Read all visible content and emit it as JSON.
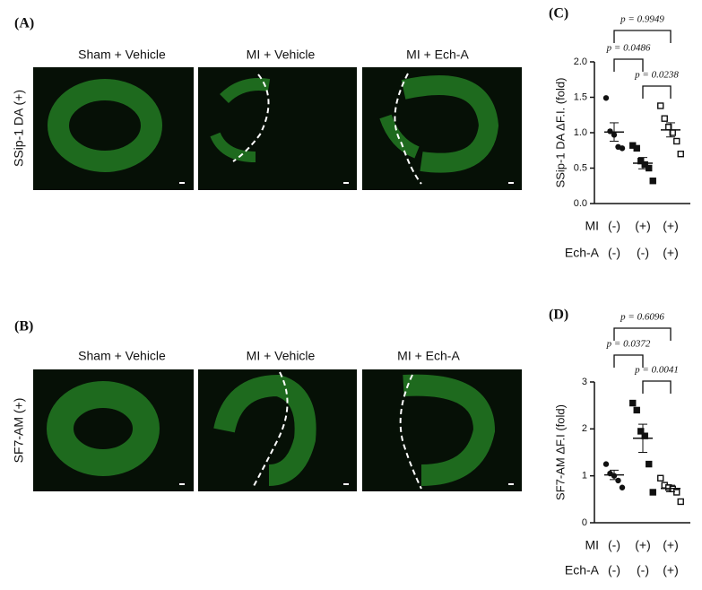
{
  "panel_a": {
    "label": "(A)",
    "row_label": "SSip-1 DA (+)",
    "columns": [
      "Sham + Vehicle",
      "MI + Vehicle",
      "MI + Ech-A"
    ]
  },
  "panel_b": {
    "label": "(B)",
    "row_label": "SF7-AM (+)",
    "columns": [
      "Sham + Vehicle",
      "MI + Vehicle",
      "MI + Ech-A"
    ]
  },
  "chart_data": [
    {
      "type": "dot",
      "label": "(C)",
      "y_label": "SSip-1 DA ΔF.I. (fold)",
      "ylim": [
        0,
        2
      ],
      "yticks": [
        {
          "value": 0,
          "label": "0.0"
        },
        0.5,
        {
          "value": 1,
          "label": "1.0"
        },
        1.5,
        {
          "value": 2,
          "label": "2.0"
        }
      ],
      "series": [
        {
          "marker": "circle",
          "color": "#111111",
          "values": [
            1.49,
            1.02,
            0.97,
            0.8,
            0.78
          ],
          "mean": 1.01,
          "sem": 0.13
        },
        {
          "marker": "square",
          "color": "#111111",
          "values": [
            0.82,
            0.78,
            0.6,
            0.55,
            0.5,
            0.32
          ],
          "mean": 0.57,
          "sem": 0.08
        },
        {
          "marker": "open-square",
          "color": "#111111",
          "values": [
            1.38,
            1.2,
            1.08,
            1.0,
            0.88,
            0.7
          ],
          "mean": 1.04,
          "sem": 0.1
        }
      ],
      "condition_rows": [
        {
          "name": "MI",
          "values": [
            "(-)",
            "(+)",
            "(+)"
          ]
        },
        {
          "name": "Ech-A",
          "values": [
            "(-)",
            "(-)",
            "(+)"
          ]
        }
      ],
      "comparisons": [
        {
          "pair": [
            0,
            2
          ],
          "label": "p = 0.9949"
        },
        {
          "pair": [
            0,
            1
          ],
          "label": "p = 0.0486"
        },
        {
          "pair": [
            1,
            2
          ],
          "label": "p = 0.0238"
        }
      ]
    },
    {
      "type": "dot",
      "label": "(D)",
      "y_label": "SF7-AM ΔF.I (fold)",
      "ylim": [
        0,
        3
      ],
      "yticks": [
        0,
        1,
        2,
        3
      ],
      "series": [
        {
          "marker": "circle",
          "color": "#111111",
          "values": [
            1.25,
            1.05,
            1.0,
            0.9,
            0.75
          ],
          "mean": 1.02,
          "sem": 0.1
        },
        {
          "marker": "square",
          "color": "#111111",
          "values": [
            2.55,
            2.4,
            1.95,
            1.85,
            1.25,
            0.65
          ],
          "mean": 1.8,
          "sem": 0.3
        },
        {
          "marker": "open-square",
          "color": "#111111",
          "values": [
            0.95,
            0.8,
            0.75,
            0.72,
            0.65,
            0.45
          ],
          "mean": 0.73,
          "sem": 0.07
        }
      ],
      "condition_rows": [
        {
          "name": "MI",
          "values": [
            "(-)",
            "(+)",
            "(+)"
          ]
        },
        {
          "name": "Ech-A",
          "values": [
            "(-)",
            "(-)",
            "(+)"
          ]
        }
      ],
      "comparisons": [
        {
          "pair": [
            0,
            2
          ],
          "label": "p = 0.6096"
        },
        {
          "pair": [
            0,
            1
          ],
          "label": "p = 0.0372"
        },
        {
          "pair": [
            1,
            2
          ],
          "label": "p = 0.0041"
        }
      ]
    }
  ]
}
